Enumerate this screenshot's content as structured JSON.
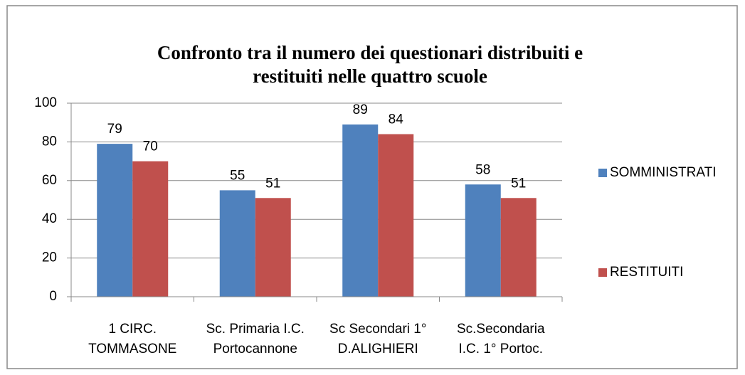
{
  "chart_data": {
    "type": "bar",
    "title": "Confronto tra il numero dei  questionari  distribuiti e\nrestituiti nelle quattro scuole",
    "categories": [
      "1 CIRC.\nTOMMASONE",
      "Sc. Primaria I.C.\nPortocannone",
      "Sc Secondari 1°\nD.ALIGHIERI",
      "Sc.Secondaria\nI.C.  1°  Portoc."
    ],
    "series": [
      {
        "name": "SOMMINISTRATI",
        "color": "#4f81bd",
        "values": [
          79,
          55,
          89,
          58
        ]
      },
      {
        "name": "RESTITUITI",
        "color": "#c0504d",
        "values": [
          70,
          51,
          84,
          51
        ]
      }
    ],
    "ylim": [
      0,
      100
    ],
    "yticks": [
      0,
      20,
      40,
      60,
      80,
      100
    ],
    "grid": true,
    "legend": "right"
  }
}
